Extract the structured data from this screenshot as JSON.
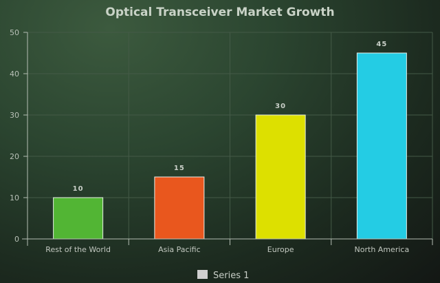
{
  "chart_data": {
    "type": "bar",
    "title": "Optical Transceiver Market Growth",
    "categories": [
      "Rest of the World",
      "Asia Pacific",
      "Europe",
      "North America"
    ],
    "series": [
      {
        "name": "Series 1",
        "values": [
          10,
          15,
          30,
          45
        ]
      }
    ],
    "bar_colors": [
      "#52b534",
      "#e9571e",
      "#dde000",
      "#24cce4"
    ],
    "legend_swatch_color": "#cfcfcf",
    "yticks": [
      0,
      10,
      20,
      30,
      40,
      50
    ],
    "ylim": [
      0,
      50
    ],
    "grid": true,
    "legend_position": "bottom"
  }
}
